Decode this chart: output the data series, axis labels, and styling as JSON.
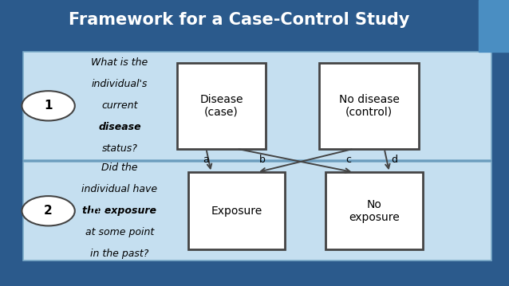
{
  "title": "Framework for a Case-Control Study",
  "title_color": "#FFFFFF",
  "title_fontsize": 15,
  "bg_color": "#2B5A8C",
  "panel_bg": "#C5DFF0",
  "panel_border": "#7AAAC8",
  "box_bg": "#FFFFFF",
  "box_border": "#444444",
  "step1_q_lines": [
    "What is the",
    "individual's",
    "current",
    "disease",
    "status?"
  ],
  "step1_bold_line": 3,
  "step2_q_lines": [
    "Did the",
    "individual have",
    "the exposure",
    "at some point",
    "in the past?"
  ],
  "step2_bold_line": 2,
  "box1_label": "Disease\n(case)",
  "box2_label": "No disease\n(control)",
  "box3_label": "Exposure",
  "box4_label": "No\nexposure",
  "step1_circle": "1",
  "step2_circle": "2",
  "abcd_labels": [
    "a",
    "b",
    "c",
    "d"
  ],
  "accent_color": "#4A8EC2"
}
